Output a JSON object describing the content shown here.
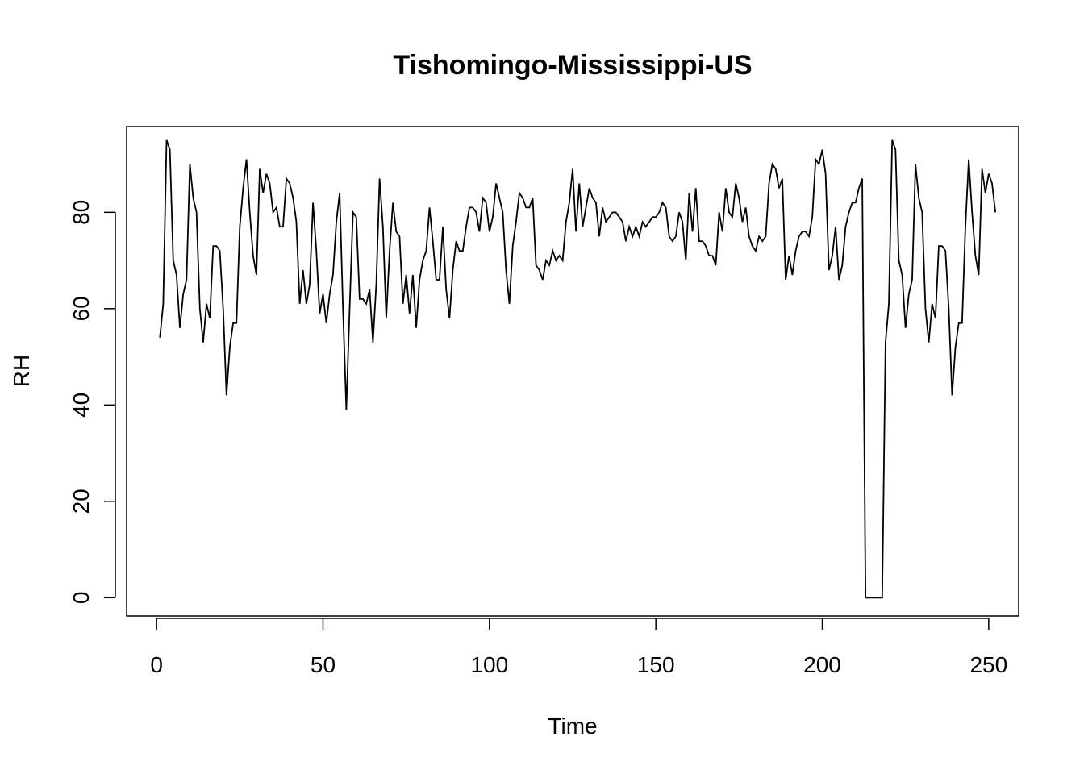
{
  "chart_data": {
    "type": "line",
    "title": "Tishomingo-Mississippi-US",
    "xlabel": "Time",
    "ylabel": "RH",
    "xlim": [
      -9,
      259
    ],
    "ylim": [
      -3.8,
      97.8
    ],
    "x_ticks": [
      0,
      50,
      100,
      150,
      200,
      250
    ],
    "y_ticks": [
      0,
      20,
      40,
      60,
      80
    ],
    "x_tick_labels": [
      "0",
      "50",
      "100",
      "150",
      "200",
      "250"
    ],
    "y_tick_labels": [
      "0",
      "20",
      "40",
      "60",
      "80"
    ],
    "grid": false,
    "line_color": "#000000",
    "series": [
      {
        "x_start": 1,
        "values": [
          54,
          61,
          95,
          93,
          70,
          67,
          56,
          63,
          66,
          90,
          83,
          80,
          60,
          53,
          61,
          58,
          73,
          73,
          72,
          60,
          42,
          52,
          57,
          57,
          77,
          85,
          91,
          80,
          71,
          67,
          89,
          84,
          88,
          86,
          80,
          81,
          77,
          77,
          87,
          86,
          83,
          78,
          61,
          68,
          61,
          65,
          82,
          72,
          59,
          63,
          57,
          63,
          67,
          78,
          84,
          60,
          39,
          60,
          80,
          79,
          62,
          62,
          61,
          64,
          53,
          65,
          87,
          77,
          58,
          72,
          82,
          76,
          75,
          61,
          67,
          59,
          67,
          56,
          66,
          70,
          72,
          81,
          74,
          66,
          66,
          77,
          64,
          58,
          68,
          74,
          72,
          72,
          77,
          81,
          81,
          80,
          76,
          83,
          82,
          76,
          79,
          86,
          83,
          80,
          68,
          61,
          73,
          78,
          84,
          83,
          81,
          81,
          83,
          69,
          68,
          66,
          70,
          69,
          72,
          70,
          71,
          70,
          78,
          82,
          89,
          76,
          86,
          77,
          81,
          85,
          83,
          82,
          75,
          81,
          78,
          79,
          80,
          80,
          79,
          78,
          74,
          77,
          75,
          77,
          75,
          78,
          77,
          78,
          79,
          79,
          80,
          82,
          81,
          75,
          74,
          75,
          80,
          78,
          70,
          84,
          76,
          85,
          74,
          74,
          73,
          71,
          71,
          69,
          80,
          76,
          85,
          80,
          79,
          86,
          83,
          78,
          81,
          75,
          73,
          72,
          75,
          74,
          75,
          86,
          90,
          89,
          85,
          87,
          66,
          71,
          67,
          72,
          75,
          76,
          76,
          75,
          79,
          91,
          90,
          93,
          88,
          68,
          71,
          77,
          66,
          69,
          77,
          80,
          82,
          82,
          85,
          87,
          0,
          0,
          0,
          0,
          0,
          0,
          53,
          61,
          95,
          93,
          70,
          67,
          56,
          63,
          66,
          90,
          83,
          80,
          60,
          53,
          61,
          58,
          73,
          73,
          72,
          60,
          42,
          52,
          57,
          57,
          77,
          91,
          80,
          71,
          67,
          89,
          84,
          88,
          86,
          80
        ]
      }
    ]
  }
}
